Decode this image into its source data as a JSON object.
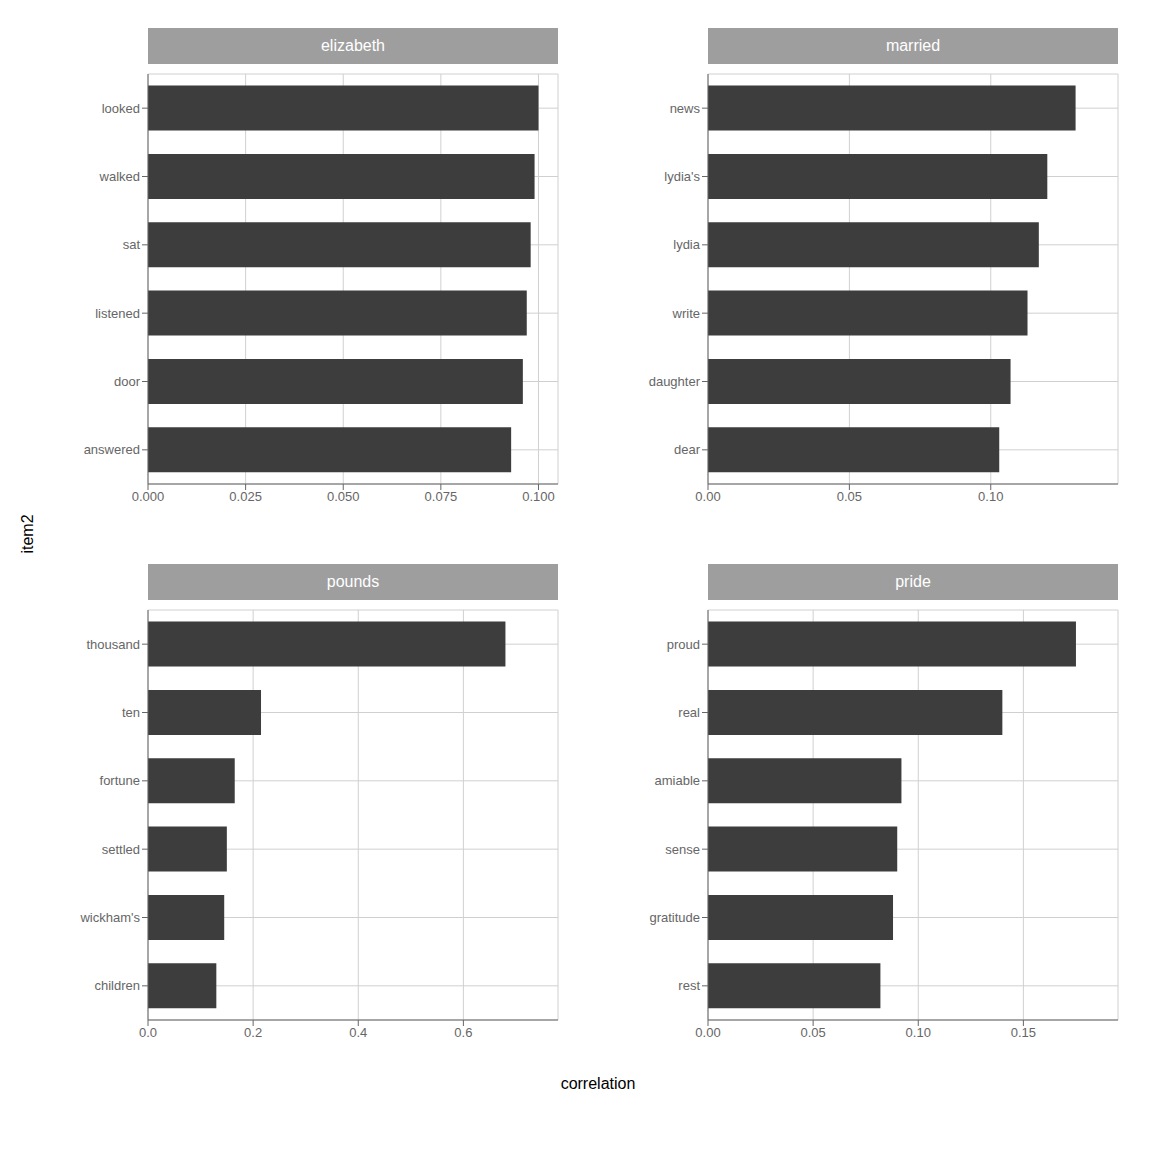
{
  "xlabel": "correlation",
  "ylabel": "item2",
  "chart_data": [
    {
      "type": "bar",
      "orientation": "horizontal",
      "title": "elizabeth",
      "categories": [
        "looked",
        "walked",
        "sat",
        "listened",
        "door",
        "answered"
      ],
      "values": [
        0.1,
        0.099,
        0.098,
        0.097,
        0.096,
        0.093
      ],
      "color": "#3d3d3d",
      "xlim": [
        0,
        0.105
      ],
      "xticks": [
        {
          "value": 0,
          "label": "0.000"
        },
        0.025,
        {
          "value": 0.05,
          "label": "0.050"
        },
        0.075,
        {
          "value": 0.1,
          "label": "0.100"
        }
      ],
      "grid": true
    },
    {
      "type": "bar",
      "orientation": "horizontal",
      "title": "married",
      "categories": [
        "news",
        "lydia's",
        "lydia",
        "write",
        "daughter",
        "dear"
      ],
      "values": [
        0.13,
        0.12,
        0.117,
        0.113,
        0.107,
        0.103
      ],
      "color": "#3d3d3d",
      "xlim": [
        0,
        0.145
      ],
      "xticks": [
        {
          "value": 0,
          "label": "0.00"
        },
        0.05,
        {
          "value": 0.1,
          "label": "0.10"
        }
      ],
      "grid": true
    },
    {
      "type": "bar",
      "orientation": "horizontal",
      "title": "pounds",
      "categories": [
        "thousand",
        "ten",
        "fortune",
        "settled",
        "wickham's",
        "children"
      ],
      "values": [
        0.68,
        0.215,
        0.165,
        0.15,
        0.145,
        0.13
      ],
      "color": "#3d3d3d",
      "xlim": [
        0,
        0.78
      ],
      "xticks": [
        {
          "value": 0,
          "label": "0.0"
        },
        0.2,
        0.4,
        0.6
      ],
      "grid": true
    },
    {
      "type": "bar",
      "orientation": "horizontal",
      "title": "pride",
      "categories": [
        "proud",
        "real",
        "amiable",
        "sense",
        "gratitude",
        "rest"
      ],
      "values": [
        0.175,
        0.14,
        0.092,
        0.09,
        0.088,
        0.082
      ],
      "color": "#3d3d3d",
      "xlim": [
        0,
        0.195
      ],
      "xticks": [
        {
          "value": 0,
          "label": "0.00"
        },
        0.05,
        {
          "value": 0.1,
          "label": "0.10"
        },
        0.15
      ],
      "grid": true
    }
  ]
}
